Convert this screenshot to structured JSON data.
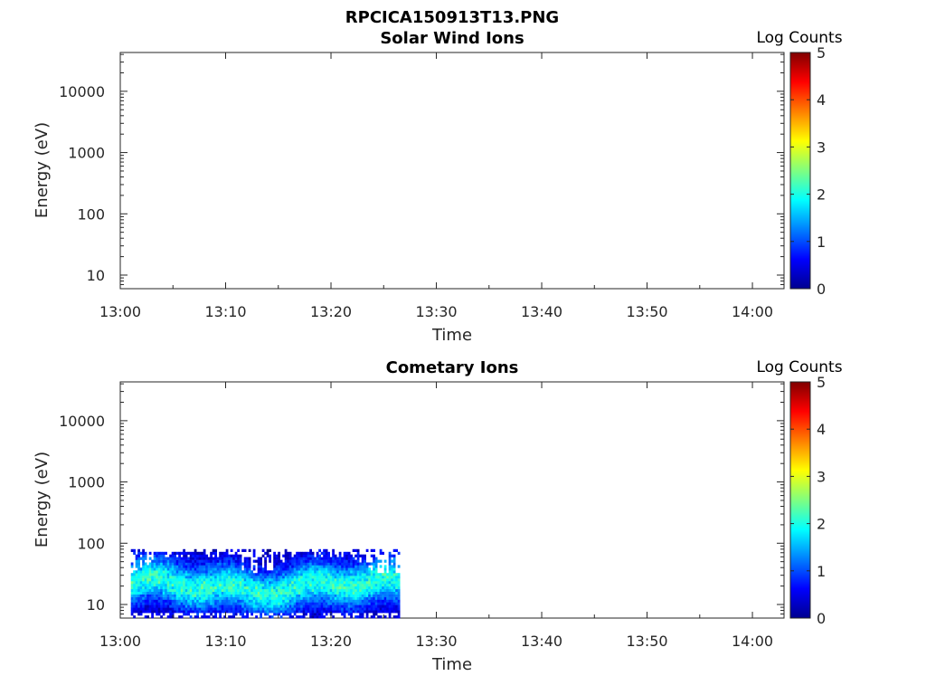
{
  "figure_title": "RPCICA150913T13.PNG",
  "chart_data": [
    {
      "type": "heatmap",
      "title": "Solar Wind Ions",
      "xlabel": "Time",
      "ylabel": "Energy (eV)",
      "x_ticks": [
        "13:00",
        "13:10",
        "13:20",
        "13:30",
        "13:40",
        "13:50",
        "14:00"
      ],
      "x_range": [
        "13:00",
        "14:03"
      ],
      "y_scale": "log",
      "y_ticks": [
        "10",
        "100",
        "1000",
        "10000"
      ],
      "y_range": [
        6,
        43000
      ],
      "colorbar": {
        "label": "Log Counts",
        "ticks": [
          "0",
          "1",
          "2",
          "3",
          "4",
          "5"
        ],
        "range": [
          0,
          5
        ],
        "colormap": "jet"
      },
      "data": {
        "present": false,
        "time_start": "",
        "time_end": ""
      }
    },
    {
      "type": "heatmap",
      "title": "Cometary Ions",
      "xlabel": "Time",
      "ylabel": "Energy (eV)",
      "x_ticks": [
        "13:00",
        "13:10",
        "13:20",
        "13:30",
        "13:40",
        "13:50",
        "14:00"
      ],
      "x_range": [
        "13:00",
        "14:03"
      ],
      "y_scale": "log",
      "y_ticks": [
        "10",
        "100",
        "1000",
        "10000"
      ],
      "y_range": [
        6,
        43000
      ],
      "colorbar": {
        "label": "Log Counts",
        "ticks": [
          "0",
          "1",
          "2",
          "3",
          "4",
          "5"
        ],
        "range": [
          0,
          5
        ],
        "colormap": "jet"
      },
      "data": {
        "present": true,
        "time_start": "13:01",
        "time_end": "13:26.5",
        "energy_min_eV": 6,
        "energy_max_eV": 80,
        "core_energy_eV": 20,
        "log_count_range": [
          0,
          2
        ]
      }
    }
  ]
}
